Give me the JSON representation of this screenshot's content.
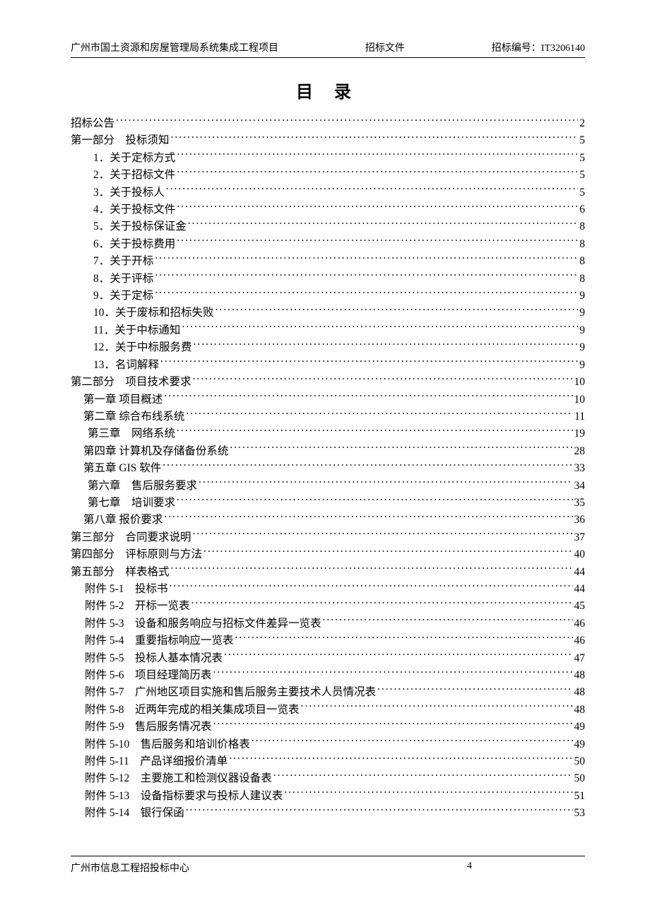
{
  "colors": {
    "text": "#000000",
    "background": "#ffffff",
    "rule": "#000000"
  },
  "header": {
    "left": "广州市国土资源和房屋管理局系统集成工程项目",
    "center": "招标文件",
    "right_label": "招标编号：",
    "right_value": "IT3206140"
  },
  "title": "目 录",
  "toc": [
    {
      "indent": "indent-0",
      "label": "招标公告",
      "page": "2"
    },
    {
      "indent": "indent-0",
      "label": "第一部分　投标须知",
      "page": "5"
    },
    {
      "indent": "indent-1",
      "label": "1．关于定标方式",
      "page": "5"
    },
    {
      "indent": "indent-1",
      "label": "2．关于招标文件",
      "page": "5"
    },
    {
      "indent": "indent-1",
      "label": "3．关于投标人",
      "page": "5"
    },
    {
      "indent": "indent-1",
      "label": "4．关于投标文件",
      "page": "6"
    },
    {
      "indent": "indent-1",
      "label": "5．关于投标保证金",
      "page": "8"
    },
    {
      "indent": "indent-1",
      "label": "6．关于投标费用",
      "page": "8"
    },
    {
      "indent": "indent-1",
      "label": "7．关于开标",
      "page": "8"
    },
    {
      "indent": "indent-1",
      "label": "8．关于评标",
      "page": "8"
    },
    {
      "indent": "indent-1",
      "label": "9．关于定标",
      "page": "9"
    },
    {
      "indent": "indent-1",
      "label": "10．关于废标和招标失败",
      "page": "9"
    },
    {
      "indent": "indent-1",
      "label": "11．关于中标通知",
      "page": "9"
    },
    {
      "indent": "indent-1",
      "label": "12．关于中标服务费",
      "page": "9"
    },
    {
      "indent": "indent-1",
      "label": "13．名词解释",
      "page": "9"
    },
    {
      "indent": "indent-0",
      "label": "第二部分　项目技术要求",
      "page": "10"
    },
    {
      "indent": "indent-1b",
      "label": "第一章 项目概述",
      "page": "10"
    },
    {
      "indent": "indent-1b",
      "label": "第二章 综合布线系统",
      "page": "11"
    },
    {
      "indent": "indent-1c",
      "label": "第三章　网络系统",
      "page": "19"
    },
    {
      "indent": "indent-1b",
      "label": "第四章 计算机及存储备份系统",
      "page": "28"
    },
    {
      "indent": "indent-1b",
      "label": "第五章 GIS 软件",
      "page": "33"
    },
    {
      "indent": "indent-1c",
      "label": "第六章　售后服务要求",
      "page": "34"
    },
    {
      "indent": "indent-1c",
      "label": "第七章　培训要求",
      "page": "35"
    },
    {
      "indent": "indent-1b",
      "label": "第八章 报价要求",
      "page": "36"
    },
    {
      "indent": "indent-0",
      "label": "第三部分　合同要求说明",
      "page": "37"
    },
    {
      "indent": "indent-0",
      "label": "第四部分　评标原则与方法",
      "page": "40"
    },
    {
      "indent": "indent-0",
      "label": "第五部分　样表格式",
      "page": "44"
    },
    {
      "indent": "indent-1d",
      "label": "附件 5-1　投标书",
      "page": "44"
    },
    {
      "indent": "indent-1d",
      "label": "附件 5-2　开标一览表",
      "page": "45"
    },
    {
      "indent": "indent-1d",
      "label": "附件 5-3　设备和服务响应与招标文件差异一览表",
      "page": "46"
    },
    {
      "indent": "indent-1d",
      "label": "附件 5-4　重要指标响应一览表",
      "page": "46"
    },
    {
      "indent": "indent-1d",
      "label": "附件 5-5　投标人基本情况表",
      "page": "47"
    },
    {
      "indent": "indent-1d",
      "label": "附件 5-6　项目经理简历表",
      "page": "48"
    },
    {
      "indent": "indent-1d",
      "label": "附件 5-7　广州地区项目实施和售后服务主要技术人员情况表",
      "page": "48"
    },
    {
      "indent": "indent-1d",
      "label": "附件 5-8　近两年完成的相关集成项目一览表",
      "page": "48"
    },
    {
      "indent": "indent-1d",
      "label": "附件 5-9　售后服务情况表",
      "page": "49"
    },
    {
      "indent": "indent-1d",
      "label": "附件 5-10　售后服务和培训价格表",
      "page": "49"
    },
    {
      "indent": "indent-1d",
      "label": "附件 5-11　产品详细报价清单",
      "page": "50"
    },
    {
      "indent": "indent-1d",
      "label": "附件 5-12　主要施工和检测仪器设备表",
      "page": "50"
    },
    {
      "indent": "indent-1d",
      "label": "附件 5-13　设备指标要求与投标人建议表",
      "page": "51"
    },
    {
      "indent": "indent-1d",
      "label": "附件 5-14　银行保函",
      "page": "53"
    }
  ],
  "footer": {
    "left": "广州市信息工程招投标中心",
    "page_number": "4"
  }
}
